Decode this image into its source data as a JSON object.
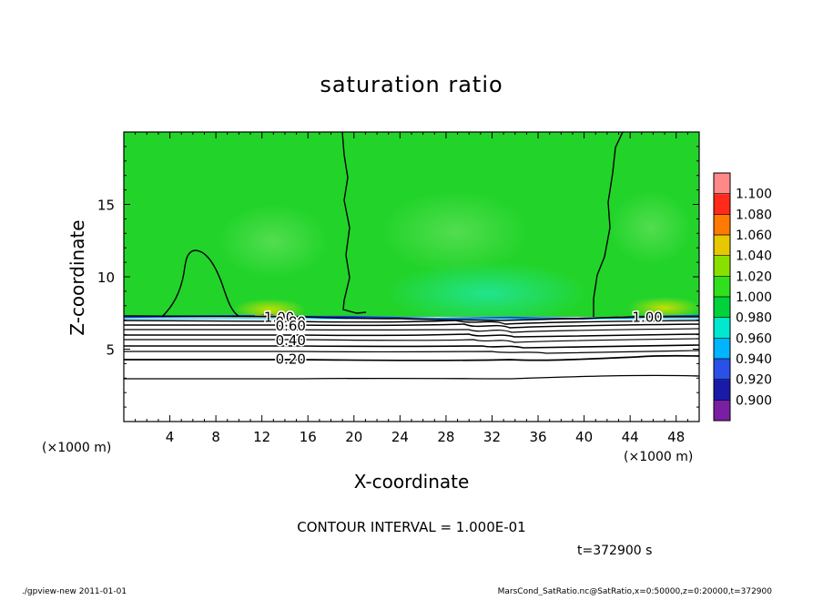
{
  "chart_data": {
    "type": "heatmap",
    "title": "saturation ratio",
    "xlabel": "X-coordinate",
    "ylabel": "Z-coordinate",
    "x_unit_label": "(×1000 m)",
    "y_unit_label": "(×1000 m)",
    "xlim": [
      0,
      50
    ],
    "ylim": [
      0,
      20
    ],
    "x_ticks": [
      4,
      8,
      12,
      16,
      20,
      24,
      28,
      32,
      36,
      40,
      44,
      48
    ],
    "x_tick_labels": [
      "4",
      "8",
      "12",
      "16",
      "20",
      "24",
      "28",
      "32",
      "36",
      "40",
      "44",
      "48"
    ],
    "y_ticks": [
      5,
      10,
      15
    ],
    "y_tick_labels": [
      "5",
      "10",
      "15"
    ],
    "colorbar": {
      "values": [
        0.9,
        0.92,
        0.94,
        0.96,
        0.98,
        1.0,
        1.02,
        1.04,
        1.06,
        1.08,
        1.1
      ],
      "labels": [
        "0.900",
        "0.920",
        "0.940",
        "0.960",
        "0.980",
        "1.000",
        "1.020",
        "1.040",
        "1.060",
        "1.080",
        "1.100"
      ],
      "colors": [
        "#7a1fa2",
        "#1a1aa8",
        "#2a50e8",
        "#00b4ff",
        "#00e8d0",
        "#00d23c",
        "#30e01c",
        "#88e000",
        "#e6c800",
        "#ff7a00",
        "#ff2a1a",
        "#ff8888"
      ]
    },
    "contour_interval": "CONTOUR INTERVAL = 1.000E-01",
    "contour_labels": [
      {
        "text": "1.00",
        "x": 13.5,
        "z": 7.2
      },
      {
        "text": "0.80",
        "x": 14.5,
        "z": 6.9
      },
      {
        "text": "0.60",
        "x": 14.5,
        "z": 6.6
      },
      {
        "text": "0.40",
        "x": 14.5,
        "z": 5.6
      },
      {
        "text": "0.20",
        "x": 14.5,
        "z": 4.3
      },
      {
        "text": "1.00",
        "x": 45.5,
        "z": 7.2
      }
    ],
    "cloud_layer_base_z": 7.3,
    "time_label": "t=372900 s"
  },
  "footer": {
    "left": "./gpview-new   2011-01-01",
    "right": "MarsCond_SatRatio.nc@SatRatio,x=0:50000,z=0:20000,t=372900"
  }
}
